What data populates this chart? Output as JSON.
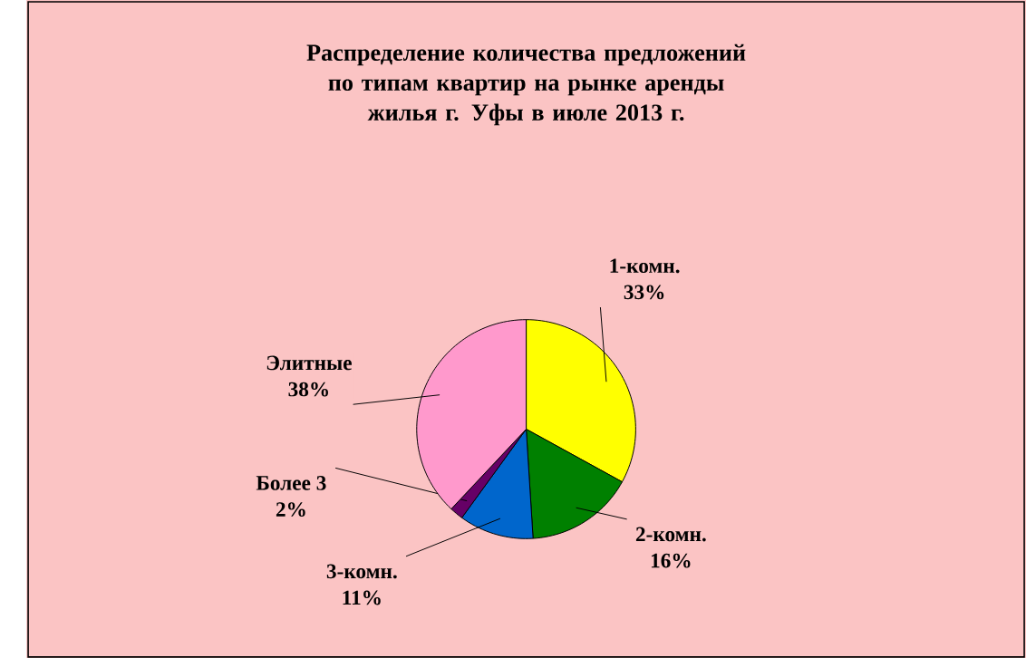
{
  "chart_data": {
    "type": "pie",
    "title": "Распределение количества предложений по типам квартир на рынке аренды жилья г. Уфы в июле 2013 г.",
    "categories": [
      "1-комн.",
      "2-комн.",
      "3-комн.",
      "Более 3",
      "Элитные"
    ],
    "values": [
      33,
      16,
      11,
      2,
      38
    ],
    "value_labels": [
      "33%",
      "16%",
      "11%",
      "2%",
      "38%"
    ],
    "colors": [
      "#ffff00",
      "#008000",
      "#0066cc",
      "#660066",
      "#ff99cc"
    ]
  }
}
